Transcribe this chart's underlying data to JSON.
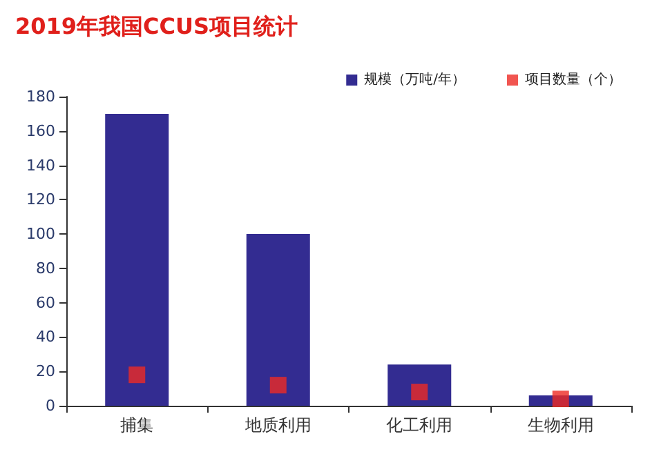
{
  "chart_data": {
    "type": "bar",
    "title": "2019年我国CCUS项目统计",
    "categories": [
      "捕集",
      "地质利用",
      "化工利用",
      "生物利用"
    ],
    "series": [
      {
        "name": "规模（万吨/年）",
        "color": "#332c91",
        "values": [
          170,
          100,
          24,
          6
        ]
      },
      {
        "name": "项目数量（个）",
        "type": "scatter",
        "color": "#ee2a24",
        "marker": "square",
        "x": [
          "捕集",
          "地质利用",
          "化工利用",
          "生物利用"
        ],
        "values": [
          18,
          12,
          8,
          4
        ]
      }
    ],
    "ylim": [
      0,
      180
    ],
    "yticks": [
      0,
      20,
      40,
      60,
      80,
      100,
      120,
      140,
      160,
      180
    ],
    "grid": false,
    "legend": "top right"
  }
}
